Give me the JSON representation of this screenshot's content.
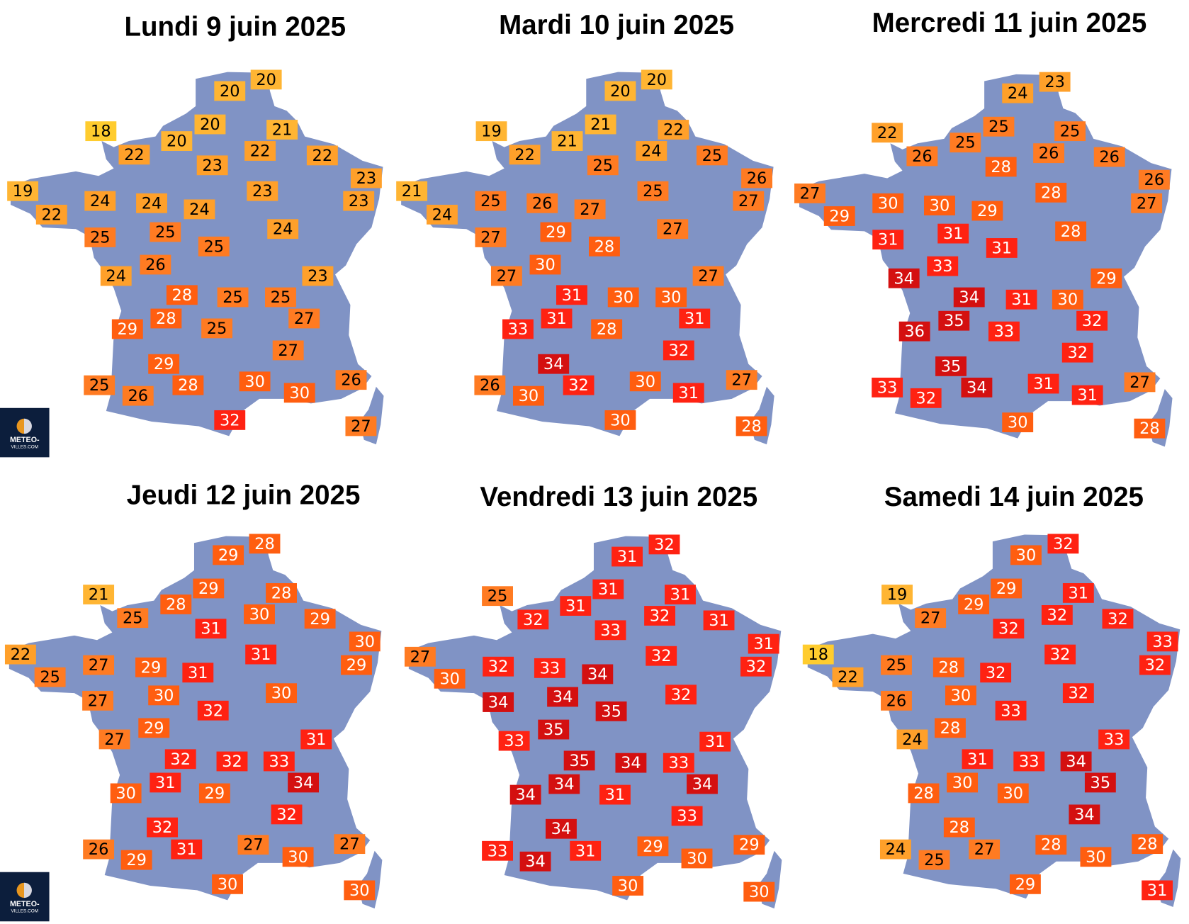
{
  "maps": [
    {
      "title": "Lundi 9 juin 2025",
      "temps": [
        20,
        20,
        18,
        20,
        21,
        20,
        22,
        22,
        22,
        23,
        23,
        19,
        23,
        23,
        22,
        24,
        24,
        24,
        25,
        24,
        25,
        25,
        26,
        24,
        23,
        28,
        25,
        25,
        27,
        28,
        29,
        25,
        27,
        29,
        30,
        26,
        25,
        28,
        26,
        30,
        32,
        27
      ]
    },
    {
      "title": "Mardi 10 juin 2025",
      "temps": [
        20,
        20,
        19,
        21,
        22,
        21,
        22,
        24,
        25,
        25,
        26,
        21,
        25,
        27,
        24,
        25,
        26,
        27,
        29,
        27,
        27,
        28,
        30,
        27,
        27,
        31,
        30,
        30,
        31,
        31,
        33,
        28,
        32,
        34,
        30,
        27,
        26,
        32,
        30,
        31,
        30,
        28
      ]
    },
    {
      "title": "Mercredi 11 juin 2025",
      "temps": [
        23,
        24,
        22,
        25,
        25,
        25,
        26,
        26,
        26,
        28,
        26,
        27,
        28,
        27,
        29,
        30,
        30,
        29,
        31,
        28,
        31,
        31,
        33,
        34,
        29,
        34,
        31,
        30,
        32,
        35,
        36,
        33,
        32,
        35,
        31,
        27,
        33,
        34,
        32,
        31,
        30,
        28
      ]
    },
    {
      "title": "Jeudi 12 juin 2025",
      "temps": [
        28,
        29,
        21,
        29,
        28,
        28,
        25,
        30,
        29,
        31,
        30,
        22,
        31,
        29,
        25,
        27,
        29,
        31,
        30,
        30,
        27,
        32,
        29,
        27,
        31,
        32,
        32,
        33,
        34,
        31,
        30,
        29,
        32,
        32,
        27,
        27,
        26,
        31,
        29,
        30,
        30,
        30
      ]
    },
    {
      "title": "Vendredi 13 juin 2025",
      "temps": [
        32,
        31,
        25,
        31,
        31,
        31,
        32,
        32,
        31,
        33,
        31,
        27,
        32,
        32,
        30,
        32,
        33,
        34,
        34,
        32,
        34,
        35,
        35,
        33,
        31,
        35,
        34,
        33,
        34,
        34,
        34,
        31,
        33,
        34,
        29,
        29,
        33,
        31,
        34,
        30,
        30,
        30
      ]
    },
    {
      "title": "Samedi 14 juin 2025",
      "temps": [
        32,
        30,
        19,
        29,
        31,
        29,
        27,
        32,
        32,
        32,
        33,
        18,
        32,
        32,
        22,
        25,
        28,
        32,
        30,
        32,
        26,
        33,
        28,
        24,
        33,
        31,
        33,
        34,
        35,
        30,
        28,
        30,
        34,
        28,
        28,
        28,
        24,
        27,
        25,
        30,
        29,
        31
      ]
    }
  ],
  "logo": {
    "line1": "METEO-",
    "line2": "VILLES.COM"
  },
  "colors": {
    "land": "#8093c5",
    "scale": [
      {
        "max": 18,
        "bg": "#ffcc2e",
        "fg": "#000000"
      },
      {
        "max": 21,
        "bg": "#ffb533",
        "fg": "#000000"
      },
      {
        "max": 24,
        "bg": "#ffa02a",
        "fg": "#000000"
      },
      {
        "max": 27,
        "bg": "#ff7b22",
        "fg": "#000000"
      },
      {
        "max": 30,
        "bg": "#ff5e10",
        "fg": "#ffffff"
      },
      {
        "max": 33,
        "bg": "#ff2212",
        "fg": "#ffffff"
      },
      {
        "max": 99,
        "bg": "#d41010",
        "fg": "#ffffff"
      }
    ]
  }
}
